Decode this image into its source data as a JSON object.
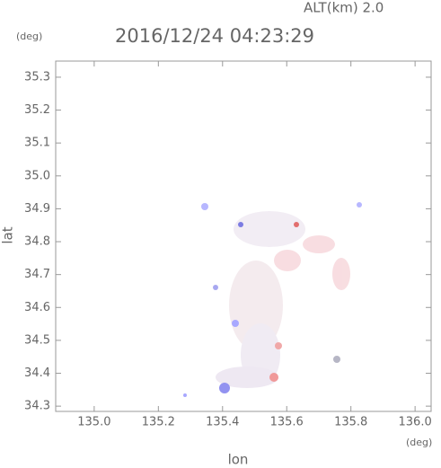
{
  "chart_data": {
    "type": "map",
    "title": "2016/12/24 04:23:29",
    "subtitle": "ALT(km)  2.0",
    "y_unit": "(deg)",
    "x_unit": "(deg)",
    "xlabel": "lon",
    "ylabel": "lat",
    "xlim": [
      134.88,
      136.05
    ],
    "ylim": [
      34.284,
      35.349
    ],
    "xticks": [
      {
        "value": 135.0,
        "label": "135.0"
      },
      135.2,
      135.4,
      135.6,
      135.8,
      {
        "value": 136.0,
        "label": "136.0"
      }
    ],
    "yticks": [
      35.3,
      35.2,
      35.1,
      {
        "value": 35.0,
        "label": "35.0"
      },
      34.9,
      34.8,
      34.7,
      34.6,
      34.5,
      34.4,
      34.3
    ]
  }
}
